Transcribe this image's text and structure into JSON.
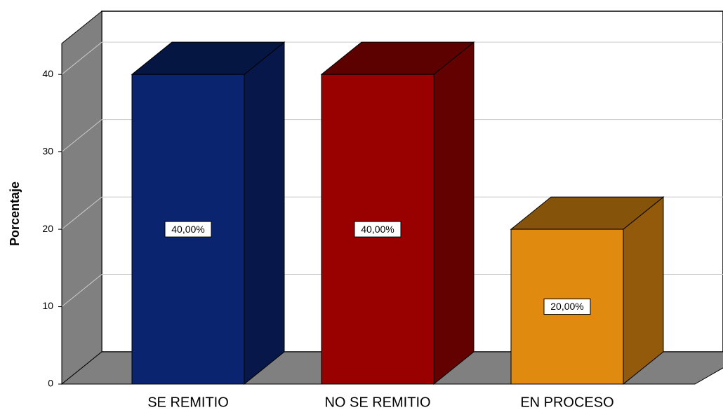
{
  "chart_data": {
    "type": "bar3d",
    "y_label": "Porcentaje",
    "categories": [
      "SE REMITIO",
      "NO SE REMITIO",
      "EN PROCESO"
    ],
    "values": [
      40,
      40,
      20
    ],
    "value_labels": [
      "40,00%",
      "40,00%",
      "20,00%"
    ],
    "colors": [
      "#0a2470",
      "#990000",
      "#e08a10"
    ],
    "ylim": [
      0,
      44
    ],
    "yticks": [
      0,
      10,
      20,
      30,
      40
    ],
    "grid": true
  }
}
